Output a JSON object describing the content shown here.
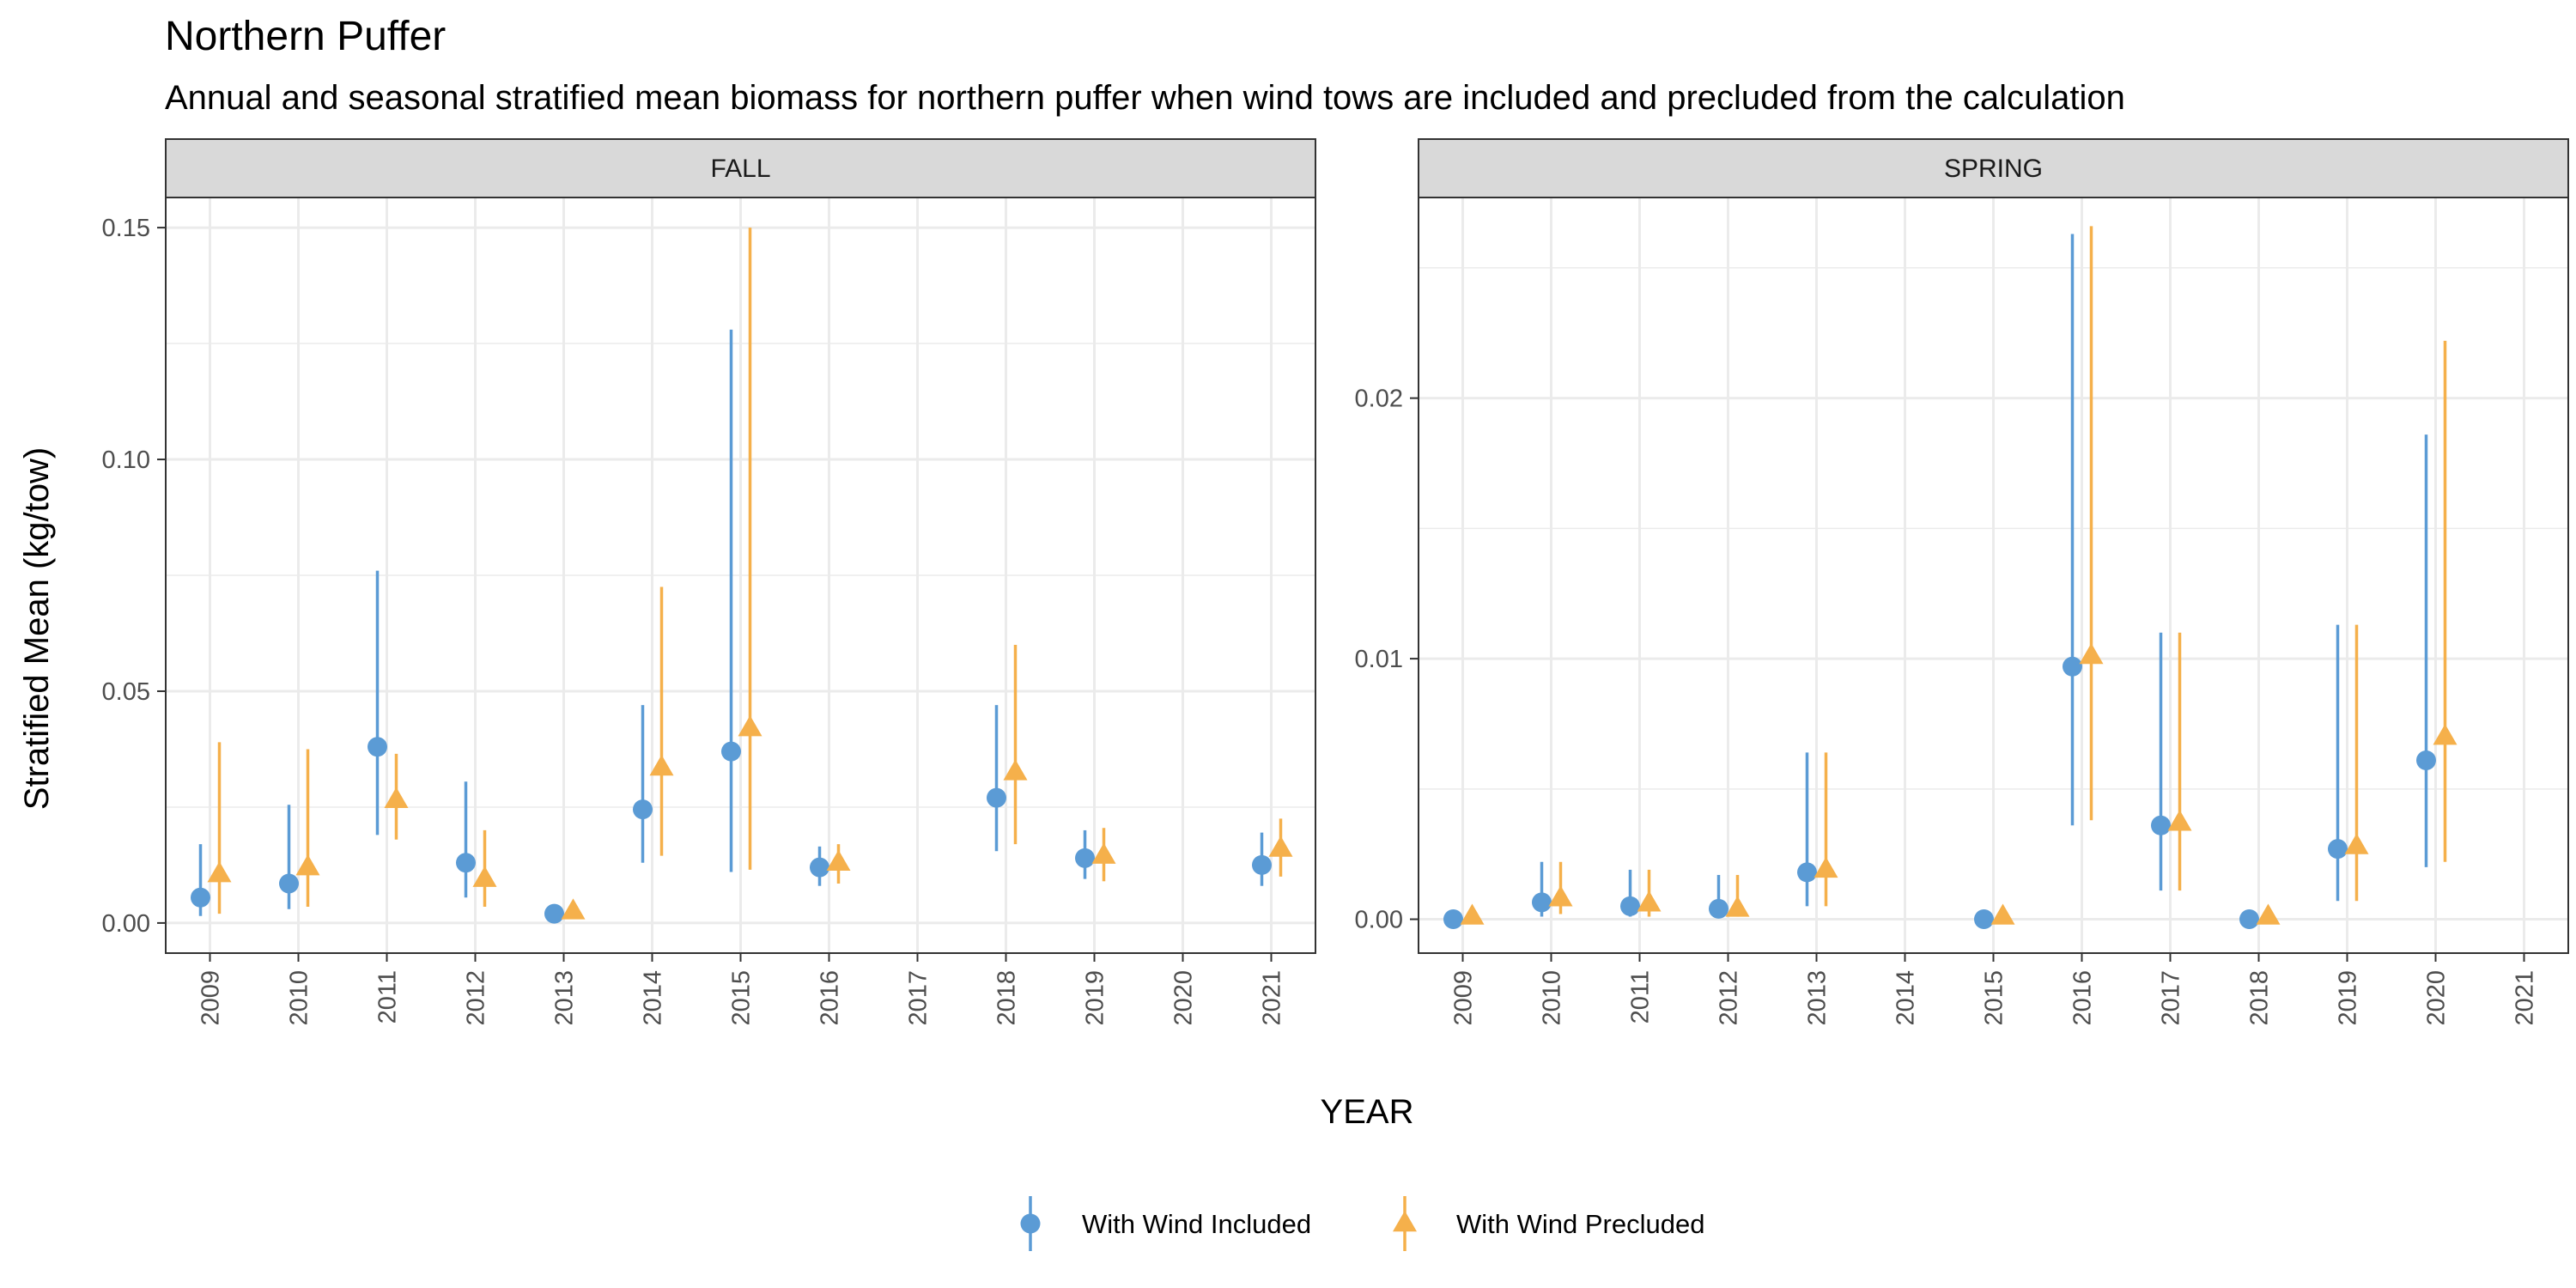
{
  "chart_data": {
    "type": "scatter",
    "title": "Northern Puffer",
    "subtitle": "Annual and seasonal stratified mean biomass for northern puffer when wind tows are included and precluded from the calculation",
    "xlabel": "YEAR",
    "ylabel": "Stratified Mean (kg/tow)",
    "grid": true,
    "legend_position": "bottom",
    "legend": [
      {
        "name": "With Wind Included",
        "color": "#5b9bd5",
        "shape": "circle"
      },
      {
        "name": "With Wind Precluded",
        "color": "#f5b04b",
        "shape": "triangle"
      }
    ],
    "panels": [
      {
        "label": "FALL",
        "x_categories": [
          "2009",
          "2010",
          "2011",
          "2012",
          "2013",
          "2014",
          "2015",
          "2016",
          "2017",
          "2018",
          "2019",
          "2020",
          "2021"
        ],
        "ylim": [
          -0.0065,
          0.1565
        ],
        "y_ticks": [
          0,
          0.05,
          0.1,
          0.15
        ],
        "y_tick_labels": [
          "0.00",
          "0.05",
          "0.10",
          "0.15"
        ],
        "series": [
          {
            "name": "With Wind Included",
            "points": [
              {
                "x": "2009",
                "y": 0.0055,
                "lo": 0.0015,
                "hi": 0.017
              },
              {
                "x": "2010",
                "y": 0.0085,
                "lo": 0.003,
                "hi": 0.0255
              },
              {
                "x": "2011",
                "y": 0.038,
                "lo": 0.019,
                "hi": 0.076
              },
              {
                "x": "2012",
                "y": 0.013,
                "lo": 0.0055,
                "hi": 0.0305
              },
              {
                "x": "2013",
                "y": 0.002,
                "lo": 0.001,
                "hi": 0.0035
              },
              {
                "x": "2014",
                "y": 0.0245,
                "lo": 0.013,
                "hi": 0.047
              },
              {
                "x": "2015",
                "y": 0.037,
                "lo": 0.011,
                "hi": 0.128
              },
              {
                "x": "2016",
                "y": 0.012,
                "lo": 0.008,
                "hi": 0.0165
              },
              {
                "x": "2018",
                "y": 0.027,
                "lo": 0.0155,
                "hi": 0.047
              },
              {
                "x": "2019",
                "y": 0.014,
                "lo": 0.0095,
                "hi": 0.02
              },
              {
                "x": "2021",
                "y": 0.0125,
                "lo": 0.008,
                "hi": 0.0195
              }
            ]
          },
          {
            "name": "With Wind Precluded",
            "points": [
              {
                "x": "2009",
                "y": 0.0105,
                "lo": 0.002,
                "hi": 0.039
              },
              {
                "x": "2010",
                "y": 0.012,
                "lo": 0.0035,
                "hi": 0.0375
              },
              {
                "x": "2011",
                "y": 0.0265,
                "lo": 0.018,
                "hi": 0.0365
              },
              {
                "x": "2012",
                "y": 0.0095,
                "lo": 0.0035,
                "hi": 0.02
              },
              {
                "x": "2013",
                "y": 0.0025,
                "lo": 0.001,
                "hi": 0.0035
              },
              {
                "x": "2014",
                "y": 0.0335,
                "lo": 0.0145,
                "hi": 0.0725
              },
              {
                "x": "2015",
                "y": 0.042,
                "lo": 0.0115,
                "hi": 0.15
              },
              {
                "x": "2016",
                "y": 0.013,
                "lo": 0.0085,
                "hi": 0.017
              },
              {
                "x": "2018",
                "y": 0.0325,
                "lo": 0.017,
                "hi": 0.06
              },
              {
                "x": "2019",
                "y": 0.0145,
                "lo": 0.009,
                "hi": 0.0205
              },
              {
                "x": "2021",
                "y": 0.016,
                "lo": 0.01,
                "hi": 0.0225
              }
            ]
          }
        ]
      },
      {
        "label": "SPRING",
        "x_categories": [
          "2009",
          "2010",
          "2011",
          "2012",
          "2013",
          "2014",
          "2015",
          "2016",
          "2017",
          "2018",
          "2019",
          "2020",
          "2021"
        ],
        "ylim": [
          -0.0013,
          0.0277
        ],
        "y_ticks": [
          0,
          0.01,
          0.02
        ],
        "y_tick_labels": [
          "0.00",
          "0.01",
          "0.02"
        ],
        "series": [
          {
            "name": "With Wind Included",
            "points": [
              {
                "x": "2009",
                "y": 0.0,
                "lo": 0.0,
                "hi": 0.0
              },
              {
                "x": "2010",
                "y": 0.00065,
                "lo": 0.0001,
                "hi": 0.0022
              },
              {
                "x": "2011",
                "y": 0.0005,
                "lo": 0.0001,
                "hi": 0.0019
              },
              {
                "x": "2012",
                "y": 0.0004,
                "lo": 0.0001,
                "hi": 0.0017
              },
              {
                "x": "2013",
                "y": 0.0018,
                "lo": 0.0005,
                "hi": 0.0064
              },
              {
                "x": "2015",
                "y": 0.0,
                "lo": 0.0,
                "hi": 0.0
              },
              {
                "x": "2016",
                "y": 0.0097,
                "lo": 0.0036,
                "hi": 0.0263
              },
              {
                "x": "2017",
                "y": 0.0036,
                "lo": 0.0011,
                "hi": 0.011
              },
              {
                "x": "2018",
                "y": 0.0,
                "lo": 0.0,
                "hi": 0.0
              },
              {
                "x": "2019",
                "y": 0.0027,
                "lo": 0.0007,
                "hi": 0.0113
              },
              {
                "x": "2020",
                "y": 0.0061,
                "lo": 0.002,
                "hi": 0.0186
              }
            ]
          },
          {
            "name": "With Wind Precluded",
            "points": [
              {
                "x": "2009",
                "y": 0.0001,
                "lo": 0.0,
                "hi": 0.0002
              },
              {
                "x": "2010",
                "y": 0.0008,
                "lo": 0.0002,
                "hi": 0.0022
              },
              {
                "x": "2011",
                "y": 0.0006,
                "lo": 0.0001,
                "hi": 0.0019
              },
              {
                "x": "2012",
                "y": 0.0004,
                "lo": 0.0001,
                "hi": 0.0017
              },
              {
                "x": "2013",
                "y": 0.0019,
                "lo": 0.0005,
                "hi": 0.0064
              },
              {
                "x": "2015",
                "y": 0.0001,
                "lo": 0.0,
                "hi": 0.0002
              },
              {
                "x": "2016",
                "y": 0.0101,
                "lo": 0.0038,
                "hi": 0.0266
              },
              {
                "x": "2017",
                "y": 0.0037,
                "lo": 0.0011,
                "hi": 0.011
              },
              {
                "x": "2018",
                "y": 0.0001,
                "lo": 0.0,
                "hi": 0.0002
              },
              {
                "x": "2019",
                "y": 0.0028,
                "lo": 0.0007,
                "hi": 0.0113
              },
              {
                "x": "2020",
                "y": 0.007,
                "lo": 0.0022,
                "hi": 0.0222
              }
            ]
          }
        ]
      }
    ]
  }
}
